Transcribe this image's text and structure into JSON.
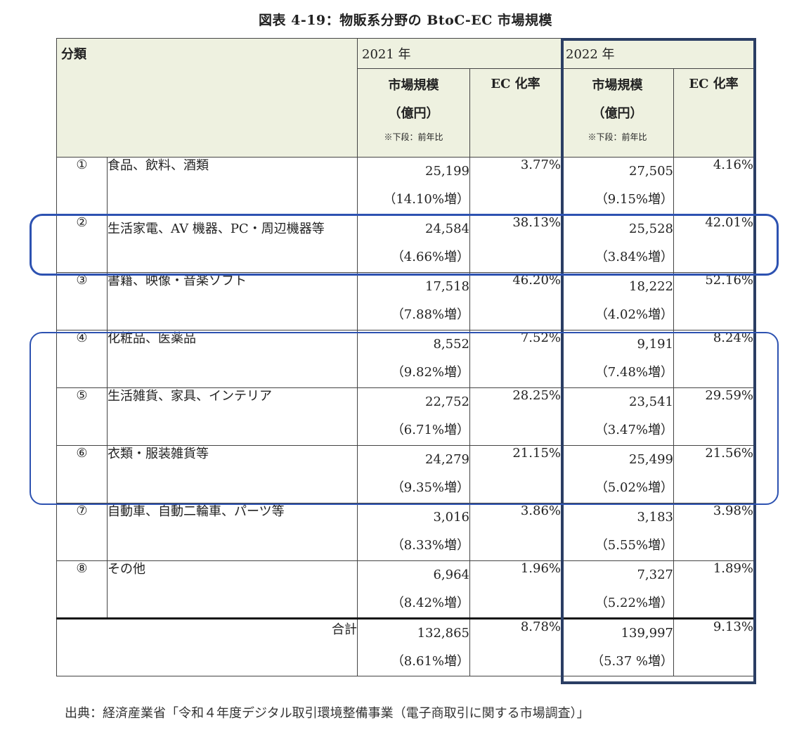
{
  "title": "図表 4-19：物販系分野の BtoC-EC 市場規模",
  "header": {
    "category": "分類",
    "year2021": "2021 年",
    "year2022": "2022 年",
    "market_size_line1": "市場規模",
    "market_size_line2": "（億円）",
    "market_size_note": "※下段：前年比",
    "ec_rate": "EC 化率"
  },
  "rows": [
    {
      "no": "①",
      "category": "食品、飲料、酒類",
      "y2021_size": "25,199",
      "y2021_growth": "（14.10%増）",
      "y2021_ec": "3.77%",
      "y2022_size": "27,505",
      "y2022_growth": "（9.15%増）",
      "y2022_ec": "4.16%"
    },
    {
      "no": "②",
      "category": "生活家電、AV 機器、PC・周辺機器等",
      "y2021_size": "24,584",
      "y2021_growth": "（4.66%増）",
      "y2021_ec": "38.13%",
      "y2022_size": "25,528",
      "y2022_growth": "（3.84%増）",
      "y2022_ec": "42.01%"
    },
    {
      "no": "③",
      "category": "書籍、映像・音楽ソフト",
      "y2021_size": "17,518",
      "y2021_growth": "（7.88%増）",
      "y2021_ec": "46.20%",
      "y2022_size": "18,222",
      "y2022_growth": "（4.02%増）",
      "y2022_ec": "52.16%"
    },
    {
      "no": "④",
      "category": "化粧品、医薬品",
      "y2021_size": "8,552",
      "y2021_growth": "（9.82%増）",
      "y2021_ec": "7.52%",
      "y2022_size": "9,191",
      "y2022_growth": "（7.48%増）",
      "y2022_ec": "8.24%"
    },
    {
      "no": "⑤",
      "category": "生活雑貨、家具、インテリア",
      "y2021_size": "22,752",
      "y2021_growth": "（6.71%増）",
      "y2021_ec": "28.25%",
      "y2022_size": "23,541",
      "y2022_growth": "（3.47%増）",
      "y2022_ec": "29.59%"
    },
    {
      "no": "⑥",
      "category": "衣類・服装雑貨等",
      "y2021_size": "24,279",
      "y2021_growth": "（9.35%増）",
      "y2021_ec": "21.15%",
      "y2022_size": "25,499",
      "y2022_growth": "（5.02%増）",
      "y2022_ec": "21.56%"
    },
    {
      "no": "⑦",
      "category": "自動車、自動二輪車、パーツ等",
      "y2021_size": "3,016",
      "y2021_growth": "（8.33%増）",
      "y2021_ec": "3.86%",
      "y2022_size": "3,183",
      "y2022_growth": "（5.55%増）",
      "y2022_ec": "3.98%"
    },
    {
      "no": "⑧",
      "category": "その他",
      "y2021_size": "6,964",
      "y2021_growth": "（8.42%増）",
      "y2021_ec": "1.96%",
      "y2022_size": "7,327",
      "y2022_growth": "（5.22%増）",
      "y2022_ec": "1.89%"
    }
  ],
  "total": {
    "label": "合計",
    "y2021_size": "132,865",
    "y2021_growth": "（8.61%増）",
    "y2021_ec": "8.78%",
    "y2022_size": "139,997",
    "y2022_growth": "（5.37 %増）",
    "y2022_ec": "9.13%"
  },
  "source": "出典：経済産業省「令和４年度デジタル取引環境整備事業（電子商取引に関する市場調査）」",
  "colors": {
    "header_bg": "#eef1e0",
    "highlight_2022_border": "#2b3e64",
    "highlight_oval": "#2d52b1"
  }
}
